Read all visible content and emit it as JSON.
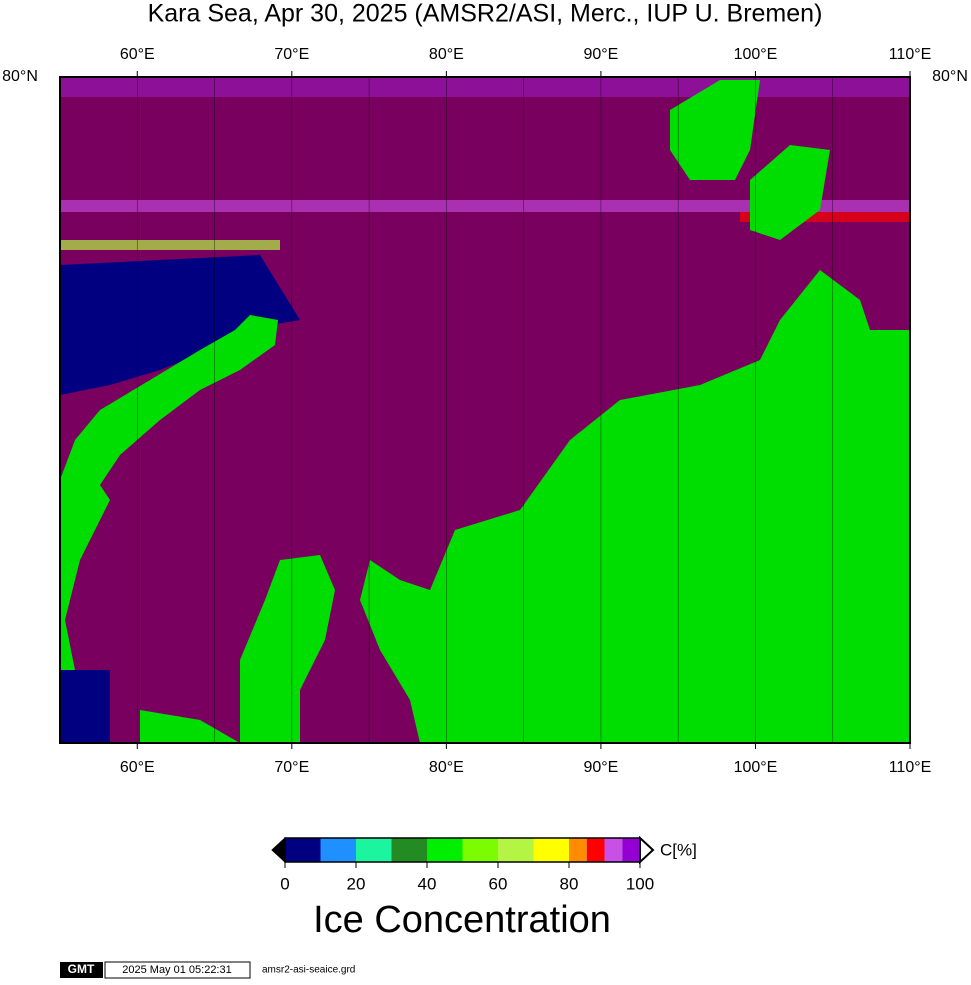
{
  "header": {
    "title": "Kara Sea, Apr 30, 2025 (AMSR2/ASI, Merc., IUP U. Bremen)"
  },
  "map": {
    "lon_range": [
      55,
      110
    ],
    "lon_ticks": [
      {
        "value": 60,
        "label": "60°E"
      },
      {
        "value": 70,
        "label": "70°E"
      },
      {
        "value": 80,
        "label": "80°E"
      },
      {
        "value": 90,
        "label": "90°E"
      },
      {
        "value": 100,
        "label": "100°E"
      },
      {
        "value": 110,
        "label": "110°E"
      }
    ],
    "meridians": [
      60,
      65,
      70,
      75,
      80,
      85,
      90,
      95,
      100,
      105
    ],
    "lat_label": "80°N"
  },
  "colorbar": {
    "bounds": [
      0,
      10,
      20,
      30,
      40,
      50,
      60,
      70,
      80,
      85,
      90,
      95,
      100
    ],
    "colors": [
      "#000080",
      "#1e90ff",
      "#1cf5a0",
      "#228b22",
      "#00ee00",
      "#7cfc00",
      "#b3f542",
      "#ffff00",
      "#ff8c00",
      "#ff0000",
      "#c850e6",
      "#9400d3"
    ],
    "ticks": [
      0,
      20,
      40,
      60,
      80,
      100
    ],
    "unit": "C[%]",
    "label": "Ice Concentration"
  },
  "footer": {
    "logo": "GMT",
    "timestamp": "2025 May 01 05:22:31",
    "file": "amsr2-asi-seaice.grd"
  }
}
